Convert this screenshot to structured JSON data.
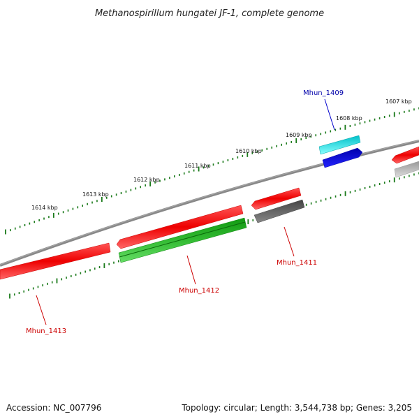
{
  "title": "Methanospirillum hungatei JF-1, complete genome",
  "footer": {
    "accession": "Accession: NC_007796",
    "summary": "Topology: circular; Length: 3,544,738 bp; Genes: 3,205"
  },
  "ticks": [
    "1607 kbp",
    "1608 kbp",
    "1609 kbp",
    "1610 kbp",
    "1611 kbp",
    "1612 kbp",
    "1613 kbp",
    "1614 kbp"
  ],
  "genes": [
    {
      "name": "Mhun_1409",
      "strand": "forward",
      "track": "outer",
      "color": "#00d8e0",
      "label_color": "#0000aa",
      "labeled": true
    },
    {
      "name": "",
      "strand": "reverse",
      "track": "inner",
      "color": "#1010dd",
      "labeled": false
    },
    {
      "name": "",
      "strand": "forward",
      "track": "outer",
      "color": "#ee1111",
      "labeled": false
    },
    {
      "name": "",
      "strand": "reverse",
      "track": "inner",
      "color": "#bbbbbb",
      "labeled": false
    },
    {
      "name": "Mhun_1411",
      "strand": "reverse",
      "track": "inner",
      "color": "#555555",
      "label_color": "#cc0000",
      "labeled": true
    },
    {
      "name": "",
      "strand": "forward",
      "track": "outer",
      "color": "#ee1111",
      "labeled": false
    },
    {
      "name": "Mhun_1412",
      "strand": "reverse",
      "track": "inner",
      "color": "#22aa22",
      "label_color": "#cc0000",
      "labeled": true
    },
    {
      "name": "",
      "strand": "forward",
      "track": "outer",
      "color": "#ee1111",
      "labeled": false
    },
    {
      "name": "Mhun_1413",
      "strand": "forward",
      "track": "outer",
      "color": "#ee1111",
      "label_color": "#cc0000",
      "labeled": true
    }
  ],
  "colors": {
    "backbone": "#777777",
    "tick": "#1a7a1a",
    "label_line": "#cc0000",
    "label_line_blue": "#0000cc"
  }
}
